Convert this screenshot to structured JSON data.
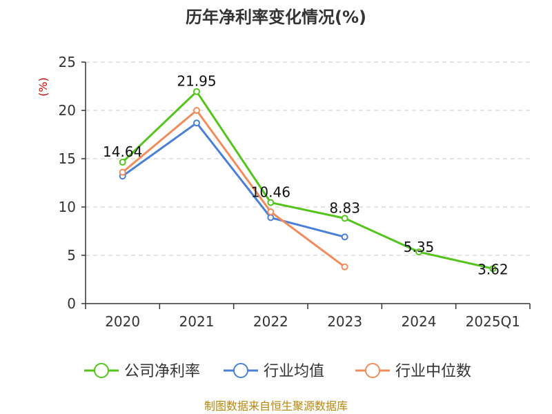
{
  "chart_data": {
    "type": "line",
    "title": "历年净利率变化情况(%)",
    "ylabel": "(%)",
    "categories": [
      "2020",
      "2021",
      "2022",
      "2023",
      "2024",
      "2025Q1"
    ],
    "ylim": [
      0,
      25
    ],
    "yticks": [
      "0",
      "5",
      "10",
      "15",
      "20",
      "25"
    ],
    "grid": true,
    "legend_position": "bottom",
    "series": [
      {
        "name": "公司净利率",
        "color": "#52c41a",
        "values": [
          14.64,
          21.95,
          10.46,
          8.83,
          5.35,
          3.62
        ],
        "labels": [
          "14.64",
          "21.95",
          "10.46",
          "8.83",
          "5.35",
          "3.62"
        ]
      },
      {
        "name": "行业均值",
        "color": "#4a7fd8",
        "values": [
          13.2,
          18.7,
          8.9,
          6.9,
          null,
          null
        ]
      },
      {
        "name": "行业中位数",
        "color": "#f28b5b",
        "values": [
          13.6,
          20.0,
          9.5,
          3.8,
          null,
          null
        ]
      }
    ],
    "source": "制图数据来自恒生聚源数据库",
    "unit_color": "#cc0000",
    "source_color": "#b8860b"
  }
}
